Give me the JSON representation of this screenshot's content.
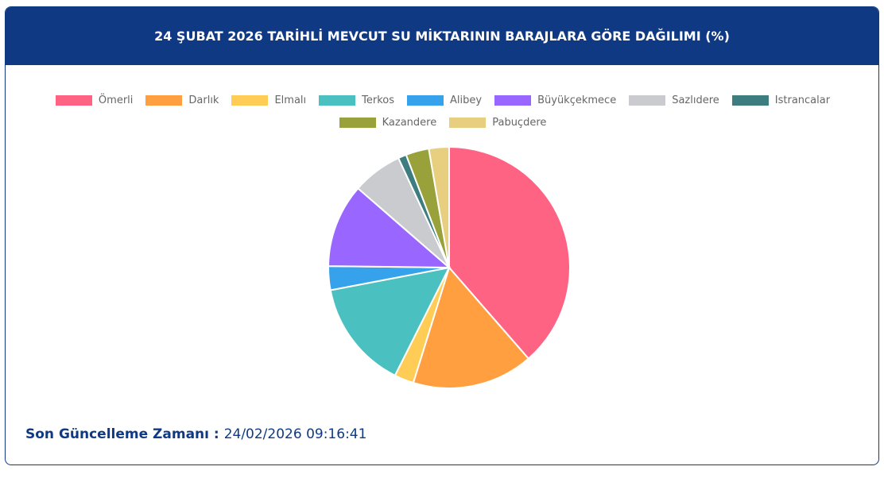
{
  "chart_data": {
    "type": "pie",
    "title": "24 ŞUBAT 2026 TARİHLİ MEVCUT SU MİKTARININ BARAJLARA GÖRE DAĞILIMI (%)",
    "categories": [
      "Ömerli",
      "Darlık",
      "Elmalı",
      "Terkos",
      "Alibey",
      "Büyükçekmece",
      "Sazlıdere",
      "Istrancalar",
      "Kazandere",
      "Pabuçdere"
    ],
    "values": [
      38.6,
      16.2,
      2.6,
      14.6,
      3.2,
      11.2,
      6.7,
      1.1,
      3.1,
      2.7
    ],
    "colors": [
      "#ff6384",
      "#ff9f40",
      "#ffcd56",
      "#4bc0c0",
      "#36a2eb",
      "#9966ff",
      "#c9cbcf",
      "#3d7d80",
      "#99a23a",
      "#e8cf80"
    ]
  },
  "footer": {
    "label": "Son Güncelleme Zamanı :",
    "value": "24/02/2026 09:16:41"
  }
}
